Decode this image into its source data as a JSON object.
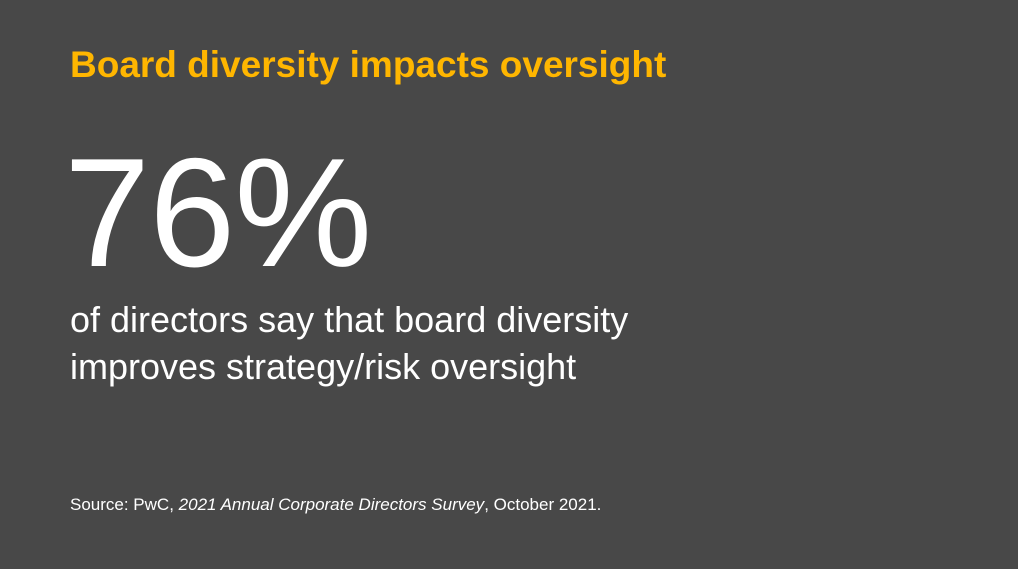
{
  "slide": {
    "title": "Board diversity impacts oversight",
    "stat": {
      "value": "76%",
      "description_lines": [
        "of directors say that board diversity",
        "improves strategy/risk oversight"
      ]
    },
    "source": {
      "prefix": "Source: PwC, ",
      "italic_title": "2021 Annual Corporate Directors Survey",
      "suffix": ", October 2021."
    }
  },
  "colors": {
    "background": "#484848",
    "accent": "#FFB600",
    "text": "#FFFFFF"
  }
}
